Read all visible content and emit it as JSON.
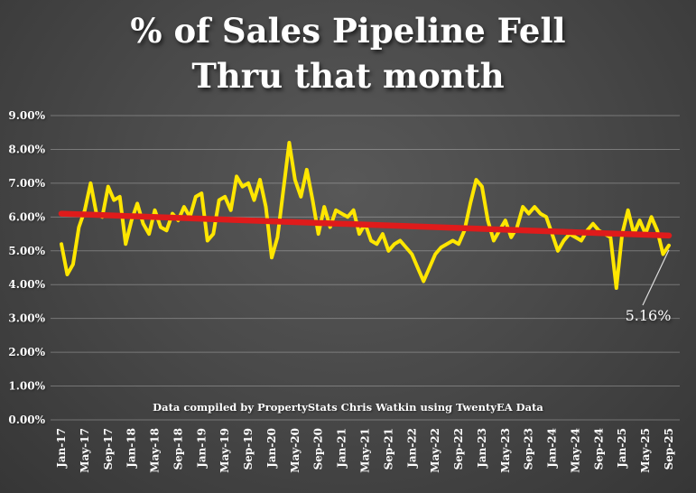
{
  "title": {
    "line1": "% of Sales Pipeline Fell",
    "line2": "Thru that month"
  },
  "caption": "Data compiled by PropertyStats Chris Watkin using TwentyEA Data",
  "colors": {
    "line": "#ffe600",
    "trend": "#df1b1b",
    "grid": "rgba(255,255,255,0.28)",
    "text": "#ffffff",
    "background": "#4a4a4a",
    "leader": "#dddddd"
  },
  "chart_data": {
    "type": "line",
    "title": "% of Sales Pipeline Fell Thru that month",
    "xlabel": "",
    "ylabel": "",
    "ylim": [
      0,
      9
    ],
    "grid": true,
    "legend": false,
    "y_ticks": [
      "0.00%",
      "1.00%",
      "2.00%",
      "3.00%",
      "4.00%",
      "5.00%",
      "6.00%",
      "7.00%",
      "8.00%",
      "9.00%"
    ],
    "x_tick_labels": [
      "Jan-17",
      "May-17",
      "Sep-17",
      "Jan-18",
      "May-18",
      "Sep-18",
      "Jan-19",
      "May-19",
      "Sep-19",
      "Jan-20",
      "May-20",
      "Sep-20",
      "Jan-21",
      "May-21",
      "Sep-21",
      "Jan-22",
      "May-22",
      "Sep-22",
      "Jan-23",
      "May-23",
      "Sep-23",
      "Jan-24",
      "May-24",
      "Sep-24",
      "Jan-25",
      "May-25",
      "Sep-25"
    ],
    "x_tick_interval": 4,
    "series_name": "% of sales pipeline fell through",
    "values": [
      5.2,
      4.3,
      4.6,
      5.7,
      6.2,
      7.0,
      6.1,
      6.0,
      6.9,
      6.5,
      6.6,
      5.2,
      5.9,
      6.4,
      5.8,
      5.5,
      6.2,
      5.7,
      5.6,
      6.1,
      5.9,
      6.3,
      6.0,
      6.6,
      6.7,
      5.3,
      5.5,
      6.5,
      6.6,
      6.2,
      7.2,
      6.9,
      7.0,
      6.5,
      7.1,
      6.3,
      4.8,
      5.4,
      6.8,
      8.2,
      7.1,
      6.6,
      7.4,
      6.5,
      5.5,
      6.3,
      5.7,
      6.2,
      6.1,
      6.0,
      6.2,
      5.5,
      5.8,
      5.3,
      5.2,
      5.5,
      5.0,
      5.2,
      5.3,
      5.1,
      4.9,
      4.5,
      4.1,
      4.5,
      4.9,
      5.1,
      5.2,
      5.3,
      5.2,
      5.6,
      6.4,
      7.1,
      6.9,
      5.9,
      5.3,
      5.6,
      5.9,
      5.4,
      5.7,
      6.3,
      6.1,
      6.3,
      6.1,
      6.0,
      5.5,
      5.0,
      5.3,
      5.5,
      5.4,
      5.3,
      5.6,
      5.8,
      5.6,
      5.5,
      5.4,
      3.9,
      5.5,
      6.2,
      5.5,
      5.9,
      5.5,
      6.0,
      5.6,
      4.9,
      5.16
    ],
    "trend": {
      "start": 6.1,
      "end": 5.45
    },
    "annotation": {
      "label": "5.16%",
      "value": 5.16,
      "at": "Sep-25"
    }
  }
}
